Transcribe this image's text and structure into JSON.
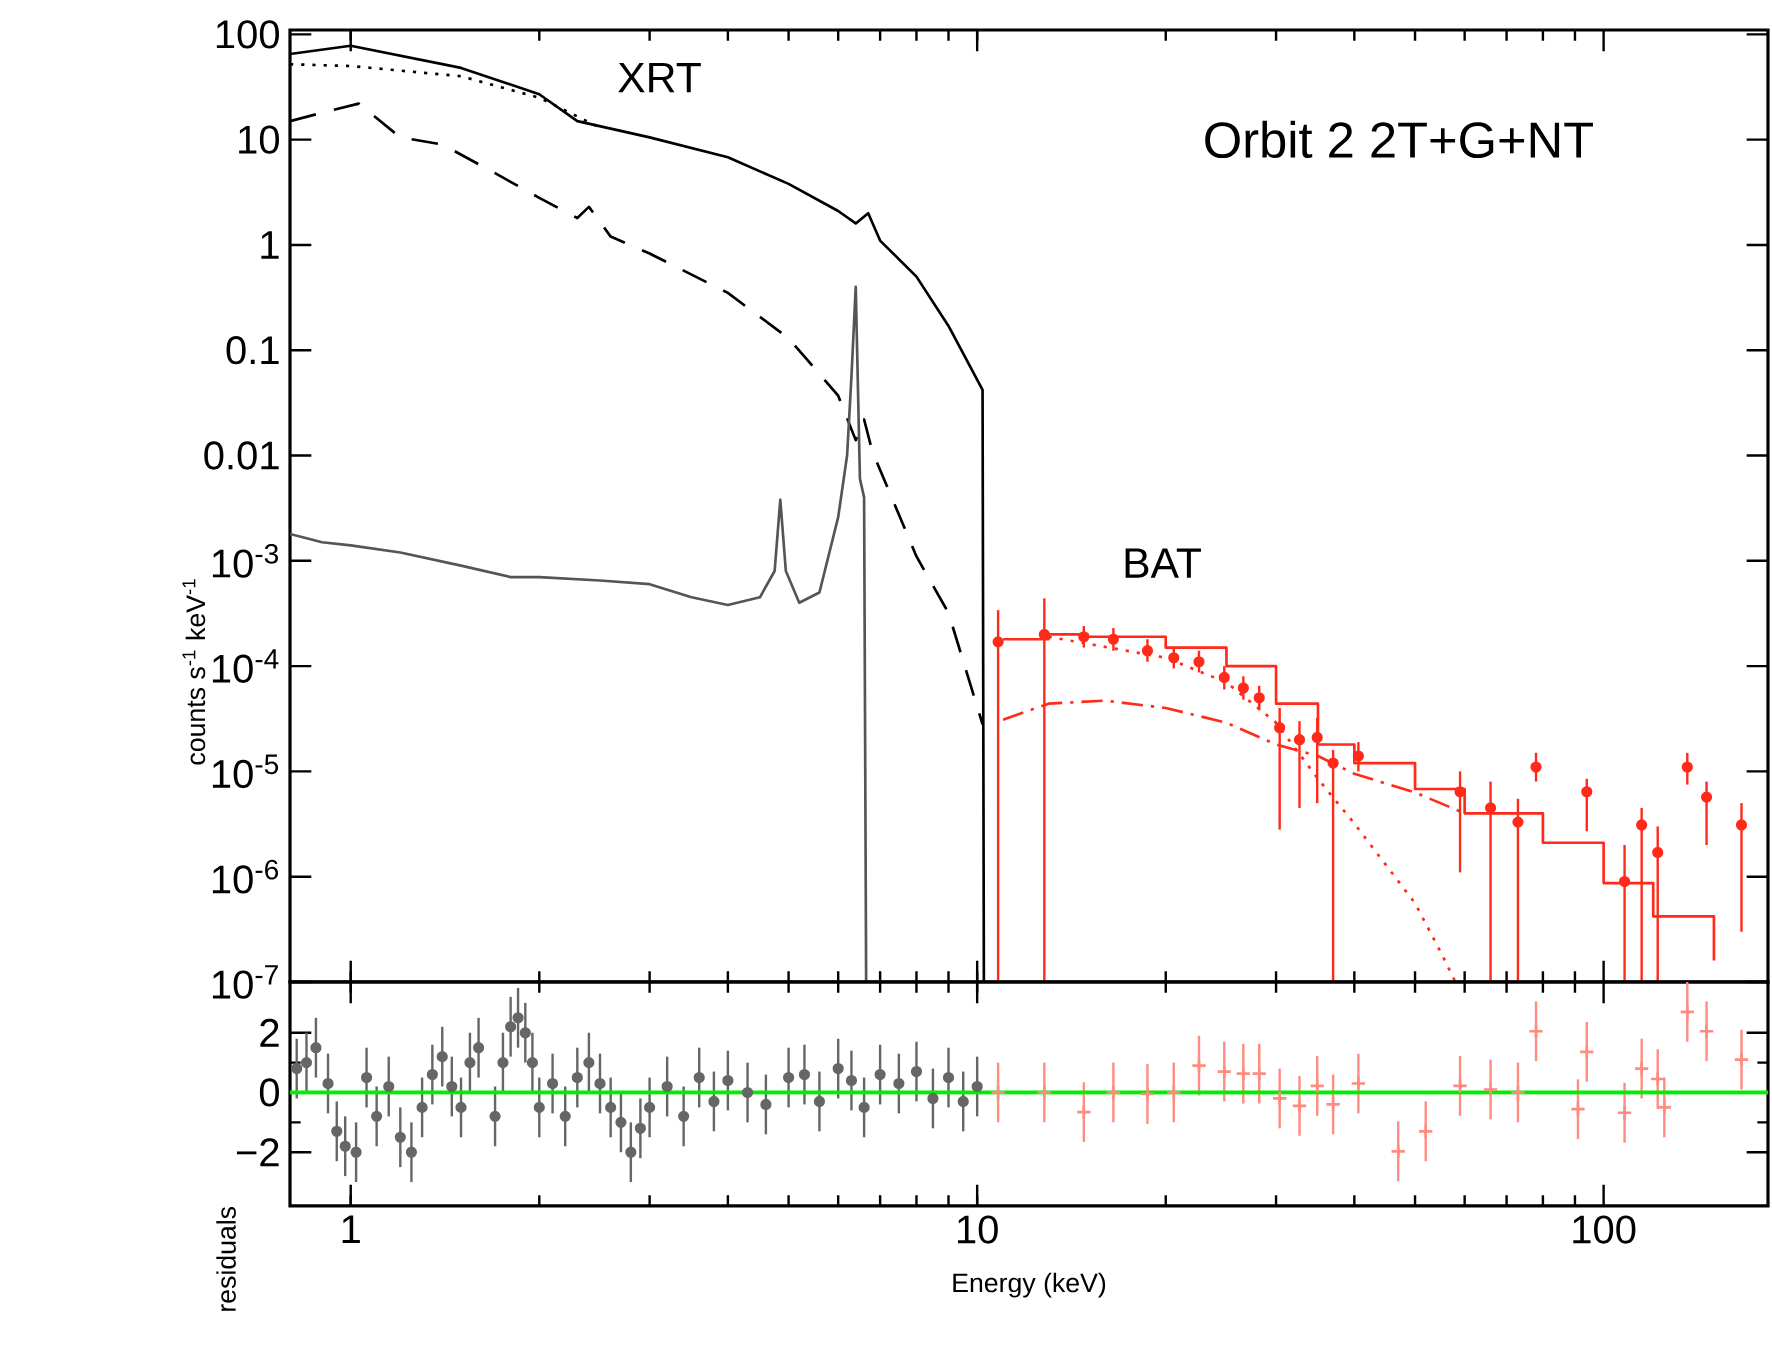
{
  "chart_data": [
    {
      "type": "line",
      "ylabel": "counts s$^{-1}$ keV$^{-1}$",
      "log": "xy",
      "tick_labels": "y",
      "xlim": [
        0.8,
        183
      ],
      "ylim": [
        1e-07,
        110
      ],
      "xticks": [
        1,
        10,
        100
      ],
      "yticks": [
        100,
        10,
        1,
        0.1,
        0.01,
        {
          "value": 0.001,
          "label": "10$^{-3}$"
        },
        {
          "value": 0.0001,
          "label": "10$^{-4}$"
        },
        {
          "value": 1e-05,
          "label": "10$^{-5}$"
        },
        {
          "value": 1e-06,
          "label": "10$^{-6}$"
        },
        {
          "value": 1e-07,
          "label": "10$^{-7}$"
        }
      ],
      "annotations": [
        "XRT",
        "BAT",
        "Orbit 2 2T+G+NT"
      ],
      "series": [
        {
          "type": "line",
          "color": "#000000",
          "line_style": "solid",
          "x": [
            0.8,
            1.0,
            1.5,
            2.0,
            2.3,
            3.0,
            4.0,
            5.0,
            6.0,
            6.4,
            6.7,
            7.0,
            8.0,
            9.0,
            10.2,
            10.25
          ],
          "values": [
            65,
            78,
            48,
            27,
            15,
            10.5,
            6.8,
            3.8,
            2.1,
            1.6,
            2.0,
            1.1,
            0.5,
            0.17,
            0.042,
            1e-07
          ]
        },
        {
          "type": "line",
          "color": "#000000",
          "line_style": "dotted",
          "x": [
            0.8,
            1.0,
            1.5,
            2.0,
            2.5
          ],
          "values": [
            52,
            50,
            40,
            25,
            13
          ]
        },
        {
          "type": "line",
          "color": "#000000",
          "line_style": "dashed",
          "x": [
            0.8,
            0.9,
            1.03,
            1.2,
            1.4,
            1.7,
            2.0,
            2.3,
            2.4,
            2.6,
            3.0,
            4.0,
            5.0,
            6.0,
            6.4,
            6.6,
            6.8,
            8.0,
            9.0,
            10.2
          ],
          "values": [
            15,
            18,
            22,
            10.5,
            9,
            4.8,
            2.8,
            1.8,
            2.3,
            1.2,
            0.83,
            0.35,
            0.13,
            0.037,
            0.014,
            0.022,
            0.011,
            0.0011,
            0.00032,
            2.8e-05
          ]
        },
        {
          "type": "line",
          "color": "#555555",
          "line_style": "solid",
          "x": [
            0.8,
            0.9,
            1.0,
            1.2,
            1.5,
            1.8,
            2.0,
            2.5,
            3.0,
            3.5,
            4.0,
            4.5,
            4.75,
            4.85,
            4.95,
            5.2,
            5.6,
            6.0,
            6.2,
            6.3,
            6.4,
            6.5,
            6.6,
            6.65
          ],
          "values": [
            0.0018,
            0.0015,
            0.0014,
            0.0012,
            0.0009,
            0.0007,
            0.0007,
            0.00065,
            0.0006,
            0.00045,
            0.00038,
            0.00045,
            0.0008,
            0.0038,
            0.0008,
            0.0004,
            0.0005,
            0.0026,
            0.01,
            0.056,
            0.4,
            0.006,
            0.004,
            1e-07
          ]
        },
        {
          "type": "step",
          "color": "#ff2a1a",
          "line_style": "solid",
          "x": [
            11,
            13,
            15,
            20,
            25,
            30,
            35,
            40,
            50,
            60,
            80,
            100,
            120,
            150
          ],
          "values": [
            0.00018,
            0.0002,
            0.00019,
            0.00015,
            0.0001,
            4.4e-05,
            1.8e-05,
            1.2e-05,
            6.8e-06,
            4e-06,
            2.1e-06,
            8.7e-07,
            4.2e-07,
            1.6e-07
          ]
        },
        {
          "type": "line",
          "color": "#ff2a1a",
          "line_style": "dotted",
          "x": [
            13,
            20,
            25,
            30,
            35,
            40,
            50,
            55,
            58
          ],
          "values": [
            0.00019,
            0.00012,
            7e-05,
            2.9e-05,
            8.5e-06,
            3.2e-06,
            5.6e-07,
            1.9e-07,
            1e-07
          ]
        },
        {
          "type": "line",
          "color": "#ff2a1a",
          "line_style": "dashdot",
          "x": [
            11,
            13,
            16,
            20,
            25,
            30,
            35,
            40,
            50,
            60
          ],
          "values": [
            3.1e-05,
            4.4e-05,
            4.7e-05,
            4e-05,
            2.9e-05,
            1.8e-05,
            1.4e-05,
            9.5e-06,
            6.3e-06,
            4e-06
          ]
        },
        {
          "type": "scatter",
          "color": "#ff2a1a",
          "marker": "circle",
          "x": [
            10.8,
            12.8,
            14.8,
            16.5,
            18.7,
            20.6,
            22.6,
            24.8,
            26.6,
            28.2,
            30.4,
            32.7,
            34.9,
            37,
            40.6,
            59,
            66,
            73,
            78,
            94,
            108,
            115,
            122,
            136,
            146,
            166
          ],
          "values": [
            0.00017,
            0.0002,
            0.00019,
            0.00018,
            0.00014,
            0.00012,
            0.00011,
            7.8e-05,
            6.2e-05,
            5e-05,
            2.6e-05,
            2e-05,
            2.1e-05,
            1.2e-05,
            1.4e-05,
            6.4e-06,
            4.5e-06,
            3.3e-06,
            1.1e-05,
            6.4e-06,
            9e-07,
            3.1e-06,
            1.7e-06,
            1.1e-05,
            5.7e-06,
            3.1e-06
          ],
          "errors": [
            [
              1e-07,
              0.00034
            ],
            [
              1e-07,
              0.00044
            ],
            [
              0.00015,
              0.00024
            ],
            [
              0.00014,
              0.00023
            ],
            [
              0.00011,
              0.00018
            ],
            [
              9.5e-05,
              0.00015
            ],
            [
              8.7e-05,
              0.00014
            ],
            [
              6e-05,
              0.0001
            ],
            [
              4.8e-05,
              8e-05
            ],
            [
              3.8e-05,
              6.5e-05
            ],
            [
              2.8e-06,
              4e-05
            ],
            [
              4.5e-06,
              3e-05
            ],
            [
              5e-06,
              3.2e-05
            ],
            [
              1e-07,
              1.6e-05
            ],
            [
              1e-05,
              1.9e-05
            ],
            [
              1.1e-06,
              1e-05
            ],
            [
              1e-07,
              8e-06
            ],
            [
              1e-07,
              5.5e-06
            ],
            [
              8e-06,
              1.5e-05
            ],
            [
              2.7e-06,
              8.5e-06
            ],
            [
              1e-07,
              2e-06
            ],
            [
              1e-07,
              4.5e-06
            ],
            [
              1e-07,
              3e-06
            ],
            [
              7.5e-06,
              1.5e-05
            ],
            [
              2e-06,
              8e-06
            ],
            [
              3e-07,
              5e-06
            ]
          ]
        }
      ]
    },
    {
      "type": "scatter",
      "xlabel": "Energy (keV)",
      "ylabel": "residuals",
      "log": "x",
      "xlim": [
        0.8,
        183
      ],
      "ylim": [
        -3.8,
        3.7
      ],
      "xticks": [
        1,
        10,
        100
      ],
      "yticks": [
        2,
        0,
        {
          "value": -2,
          "label": "−2"
        }
      ],
      "ref_lines": [
        {
          "axis": "y",
          "value": 0,
          "color": "#00ee00"
        }
      ],
      "series": [
        {
          "color": "#666666",
          "marker": "circle",
          "x": [
            0.82,
            0.85,
            0.88,
            0.92,
            0.95,
            0.98,
            1.02,
            1.06,
            1.1,
            1.15,
            1.2,
            1.25,
            1.3,
            1.35,
            1.4,
            1.45,
            1.5,
            1.55,
            1.6,
            1.7,
            1.75,
            1.8,
            1.85,
            1.9,
            1.95,
            2.0,
            2.1,
            2.2,
            2.3,
            2.4,
            2.5,
            2.6,
            2.7,
            2.8,
            2.9,
            3.0,
            3.2,
            3.4,
            3.6,
            3.8,
            4.0,
            4.3,
            4.6,
            5.0,
            5.3,
            5.6,
            6.0,
            6.3,
            6.6,
            7.0,
            7.5,
            8.0,
            8.5,
            9.0,
            9.5,
            10.0
          ],
          "values": [
            0.8,
            1.0,
            1.5,
            0.3,
            -1.3,
            -1.8,
            -2.0,
            0.5,
            -0.8,
            0.2,
            -1.5,
            -2.0,
            -0.5,
            0.6,
            1.2,
            0.2,
            -0.5,
            1.0,
            1.5,
            -0.8,
            1.0,
            2.2,
            2.5,
            2.0,
            1.0,
            -0.5,
            0.3,
            -0.8,
            0.5,
            1.0,
            0.3,
            -0.5,
            -1.0,
            -2.0,
            -1.2,
            -0.5,
            0.2,
            -0.8,
            0.5,
            -0.3,
            0.4,
            0.0,
            -0.4,
            0.5,
            0.6,
            -0.3,
            0.8,
            0.4,
            -0.5,
            0.6,
            0.3,
            0.7,
            -0.2,
            0.5,
            -0.3,
            0.2
          ],
          "errors": [
            1,
            1,
            1,
            1,
            1,
            1,
            1,
            1,
            1,
            1,
            1,
            1,
            1,
            1,
            1,
            1,
            1,
            1,
            1,
            1,
            1,
            1,
            1,
            1,
            1,
            1,
            1,
            1,
            1,
            1,
            1,
            1,
            1,
            1,
            1,
            1,
            1,
            1,
            1,
            1,
            1,
            1,
            1,
            1,
            1,
            1,
            1,
            1,
            1,
            1,
            1,
            1,
            1,
            1,
            1,
            1
          ]
        },
        {
          "color": "#ff8c80",
          "marker": "cross",
          "x": [
            10.8,
            12.8,
            14.8,
            16.5,
            18.7,
            20.6,
            22.6,
            24.8,
            26.6,
            28.2,
            30.4,
            32.7,
            34.9,
            37,
            40.6,
            47,
            52,
            59,
            66,
            73,
            78,
            91,
            94,
            108,
            115,
            122,
            125,
            136,
            146,
            166
          ],
          "values": [
            0,
            0,
            -0.66,
            0,
            -0.05,
            0,
            0.9,
            0.7,
            0.63,
            0.63,
            -0.2,
            -0.45,
            0.22,
            -0.4,
            0.3,
            -1.97,
            -1.3,
            0.22,
            0.1,
            0,
            2.05,
            -0.56,
            1.36,
            -0.68,
            0.8,
            0.45,
            -0.5,
            2.7,
            2.05,
            1.1
          ],
          "errors": [
            1,
            1,
            1,
            1,
            1,
            1,
            1,
            1,
            1,
            1,
            1,
            1,
            1,
            1,
            1,
            1,
            1,
            1,
            1,
            1,
            1,
            1,
            1,
            1,
            1,
            1,
            1,
            1,
            1,
            1
          ]
        }
      ]
    }
  ]
}
